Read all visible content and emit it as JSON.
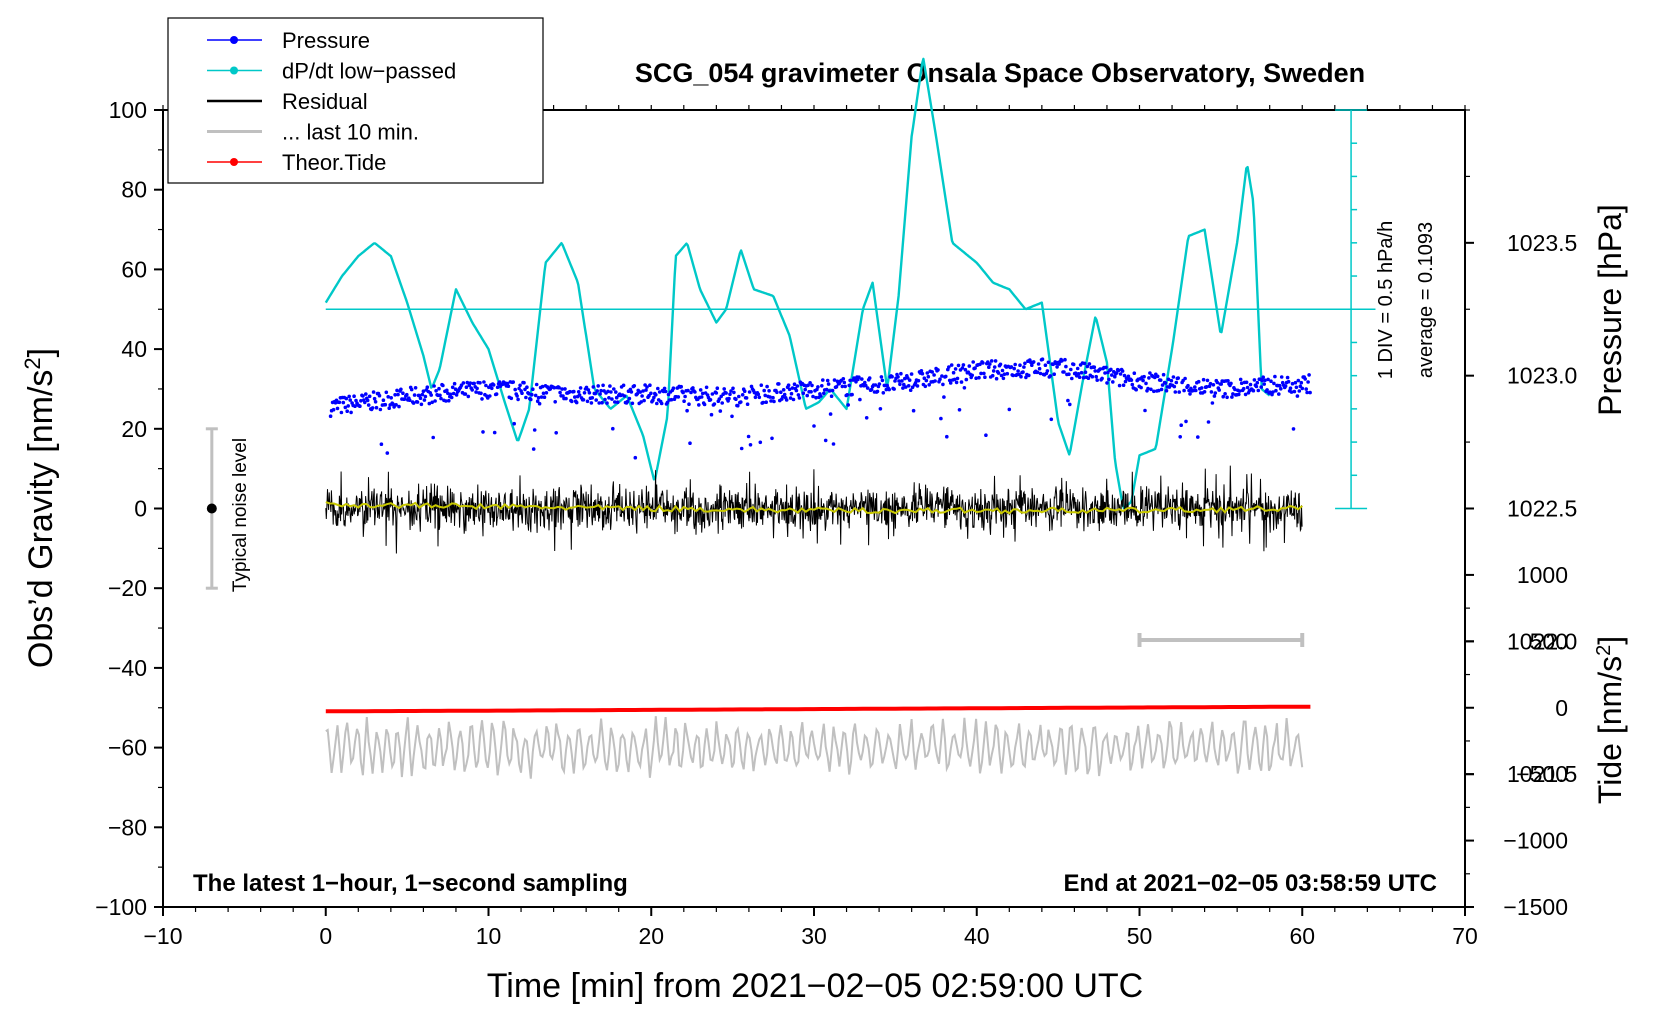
{
  "chart_data": {
    "type": "line",
    "title": "SCG_054 gravimeter Onsala Space Observatory, Sweden",
    "xlabel": "Time [min] from 2021−02−05 02:59:00 UTC",
    "ylabel_left": "Obs’d Gravity [nm/s",
    "ylabel_left_sup": "2",
    "ylabel_left_end": "]",
    "ylabel_right_top": "Pressure [hPa]",
    "ylabel_right_bottom": "Tide [nm/s",
    "ylabel_right_bottom_sup": "2",
    "ylabel_right_bottom_end": "]",
    "xlim": [
      -10,
      70
    ],
    "ylim": [
      -100,
      100
    ],
    "pressure_ylim": [
      1021.0,
      1024.0
    ],
    "tide_ylim": [
      -1500,
      4500
    ],
    "x_ticks": [
      {
        "v": -10,
        "label": "−10"
      },
      {
        "v": 0,
        "label": "0"
      },
      {
        "v": 10,
        "label": "10"
      },
      {
        "v": 20,
        "label": "20"
      },
      {
        "v": 30,
        "label": "30"
      },
      {
        "v": 40,
        "label": "40"
      },
      {
        "v": 50,
        "label": "50"
      },
      {
        "v": 60,
        "label": "60"
      },
      {
        "v": 70,
        "label": "70"
      }
    ],
    "y_ticks": [
      {
        "v": 100,
        "label": "100"
      },
      {
        "v": 80,
        "label": "80"
      },
      {
        "v": 60,
        "label": "60"
      },
      {
        "v": 40,
        "label": "40"
      },
      {
        "v": 20,
        "label": "20"
      },
      {
        "v": 0,
        "label": "0"
      },
      {
        "v": -20,
        "label": "−20"
      },
      {
        "v": -40,
        "label": "−40"
      },
      {
        "v": -60,
        "label": "−60"
      },
      {
        "v": -80,
        "label": "−80"
      },
      {
        "v": -100,
        "label": "−100"
      }
    ],
    "pressure_ticks": [
      {
        "v": 1023.5,
        "label": "1023.5"
      },
      {
        "v": 1023.0,
        "label": "1023.0"
      },
      {
        "v": 1022.5,
        "label": "1022.5"
      },
      {
        "v": 1022.0,
        "label": "1022.0"
      },
      {
        "v": 1021.5,
        "label": "1021.5"
      }
    ],
    "tide_ticks": [
      {
        "v": 1000,
        "label": "1000"
      },
      {
        "v": 500,
        "label": "500"
      },
      {
        "v": 0,
        "label": "0"
      },
      {
        "v": -500,
        "label": "−500"
      },
      {
        "v": -1000,
        "label": "−1000"
      },
      {
        "v": -1500,
        "label": "−1500"
      }
    ],
    "legend": [
      {
        "name": "Pressure",
        "color": "#0000ff",
        "marker": true
      },
      {
        "name": "dP/dt low−passed",
        "color": "#00c8c8",
        "marker": true
      },
      {
        "name": "Residual",
        "color": "#000000",
        "marker": false
      },
      {
        "name": "... last 10 min.",
        "color": "#c0c0c0",
        "marker": false
      },
      {
        "name": "Theor.Tide",
        "color": "#ff0000",
        "marker": true
      }
    ],
    "series": [
      {
        "name": "Pressure",
        "color": "#0000ff",
        "unit": "hPa",
        "x": [
          0,
          5,
          10,
          15,
          20,
          25,
          30,
          35,
          40,
          45,
          50,
          55,
          60
        ],
        "values": [
          1022.88,
          1022.92,
          1022.95,
          1022.93,
          1022.93,
          1022.92,
          1022.95,
          1022.97,
          1023.02,
          1023.03,
          1022.98,
          1022.95,
          1022.97
        ]
      },
      {
        "name": "dP/dt low-passed",
        "color": "#00c8c8",
        "unit": "hPa/h (1 DIV = 0.5 hPa/h, baseline at average)",
        "x": [
          0,
          1,
          2,
          3,
          4,
          5,
          6,
          6.5,
          7,
          8,
          9,
          10,
          11,
          11.8,
          12.5,
          13.5,
          14.5,
          15.5,
          16.5,
          17.5,
          18.5,
          19.5,
          20.2,
          21,
          21.5,
          22.2,
          23,
          24,
          24.6,
          25.5,
          26.3,
          27.5,
          28.5,
          29.5,
          30.3,
          31,
          32,
          33,
          33.6,
          34.5,
          35.2,
          36,
          36.7,
          37.5,
          38.5,
          40,
          41,
          42,
          43,
          44,
          45,
          45.7,
          46.5,
          47.3,
          48,
          48.5,
          49,
          49.5,
          50,
          51,
          52,
          53,
          54,
          55,
          56,
          56.6,
          57,
          57.5,
          58
        ],
        "values": [
          0.05,
          0.25,
          0.4,
          0.5,
          0.4,
          0.05,
          -0.35,
          -0.6,
          -0.45,
          0.15,
          -0.1,
          -0.3,
          -0.7,
          -1.0,
          -0.75,
          0.35,
          0.5,
          0.2,
          -0.6,
          -0.75,
          -0.65,
          -0.95,
          -1.3,
          -0.8,
          0.4,
          0.5,
          0.15,
          -0.1,
          0.0,
          0.45,
          0.15,
          0.1,
          -0.2,
          -0.75,
          -0.7,
          -0.6,
          -0.75,
          0.0,
          0.2,
          -0.6,
          0.1,
          1.3,
          1.9,
          1.3,
          0.5,
          0.35,
          0.2,
          0.15,
          0.0,
          0.05,
          -0.85,
          -1.1,
          -0.55,
          -0.05,
          -0.4,
          -1.15,
          -1.5,
          -1.45,
          -1.1,
          -1.05,
          -0.3,
          0.55,
          0.6,
          -0.2,
          0.5,
          1.1,
          0.8,
          -0.6,
          -0.65
        ]
      },
      {
        "name": "Residual",
        "color": "#000000",
        "unit": "nm/s2",
        "x": [
          0,
          60
        ],
        "values": [
          0,
          0
        ],
        "amplitude": [
          -12,
          12
        ]
      },
      {
        "name": "Residual smoothed",
        "color": "#c8c800",
        "unit": "nm/s2",
        "x": [
          0,
          10,
          20,
          30,
          40,
          50,
          60
        ],
        "values": [
          1,
          0.5,
          0,
          -0.5,
          -0.5,
          -0.5,
          0
        ]
      },
      {
        "name": "... last 10 min.",
        "color": "#c0c0c0",
        "unit": "nm/s2 (offset −60)",
        "x": [
          0,
          60
        ],
        "values": [
          -60,
          -60
        ],
        "amplitude": [
          -68,
          -52
        ]
      },
      {
        "name": "Theor.Tide",
        "color": "#ff0000",
        "unit": "nm/s2",
        "x": [
          0,
          10,
          20,
          30,
          40,
          50,
          60
        ],
        "values": [
          -27,
          -22,
          -16,
          -10,
          -4,
          2,
          8
        ]
      }
    ],
    "annotations": {
      "dpdt_scale": "1 DIV = 0.5 hPa/h",
      "dpdt_average": "average = 0.1093",
      "noise_label": "Typical noise level",
      "noise_range": [
        -20,
        20
      ],
      "bottom_left": "The latest 1−hour, 1−second sampling",
      "bottom_right": "End at 2021−02−05 03:58:59 UTC",
      "last10_bar": [
        50,
        60
      ]
    }
  }
}
